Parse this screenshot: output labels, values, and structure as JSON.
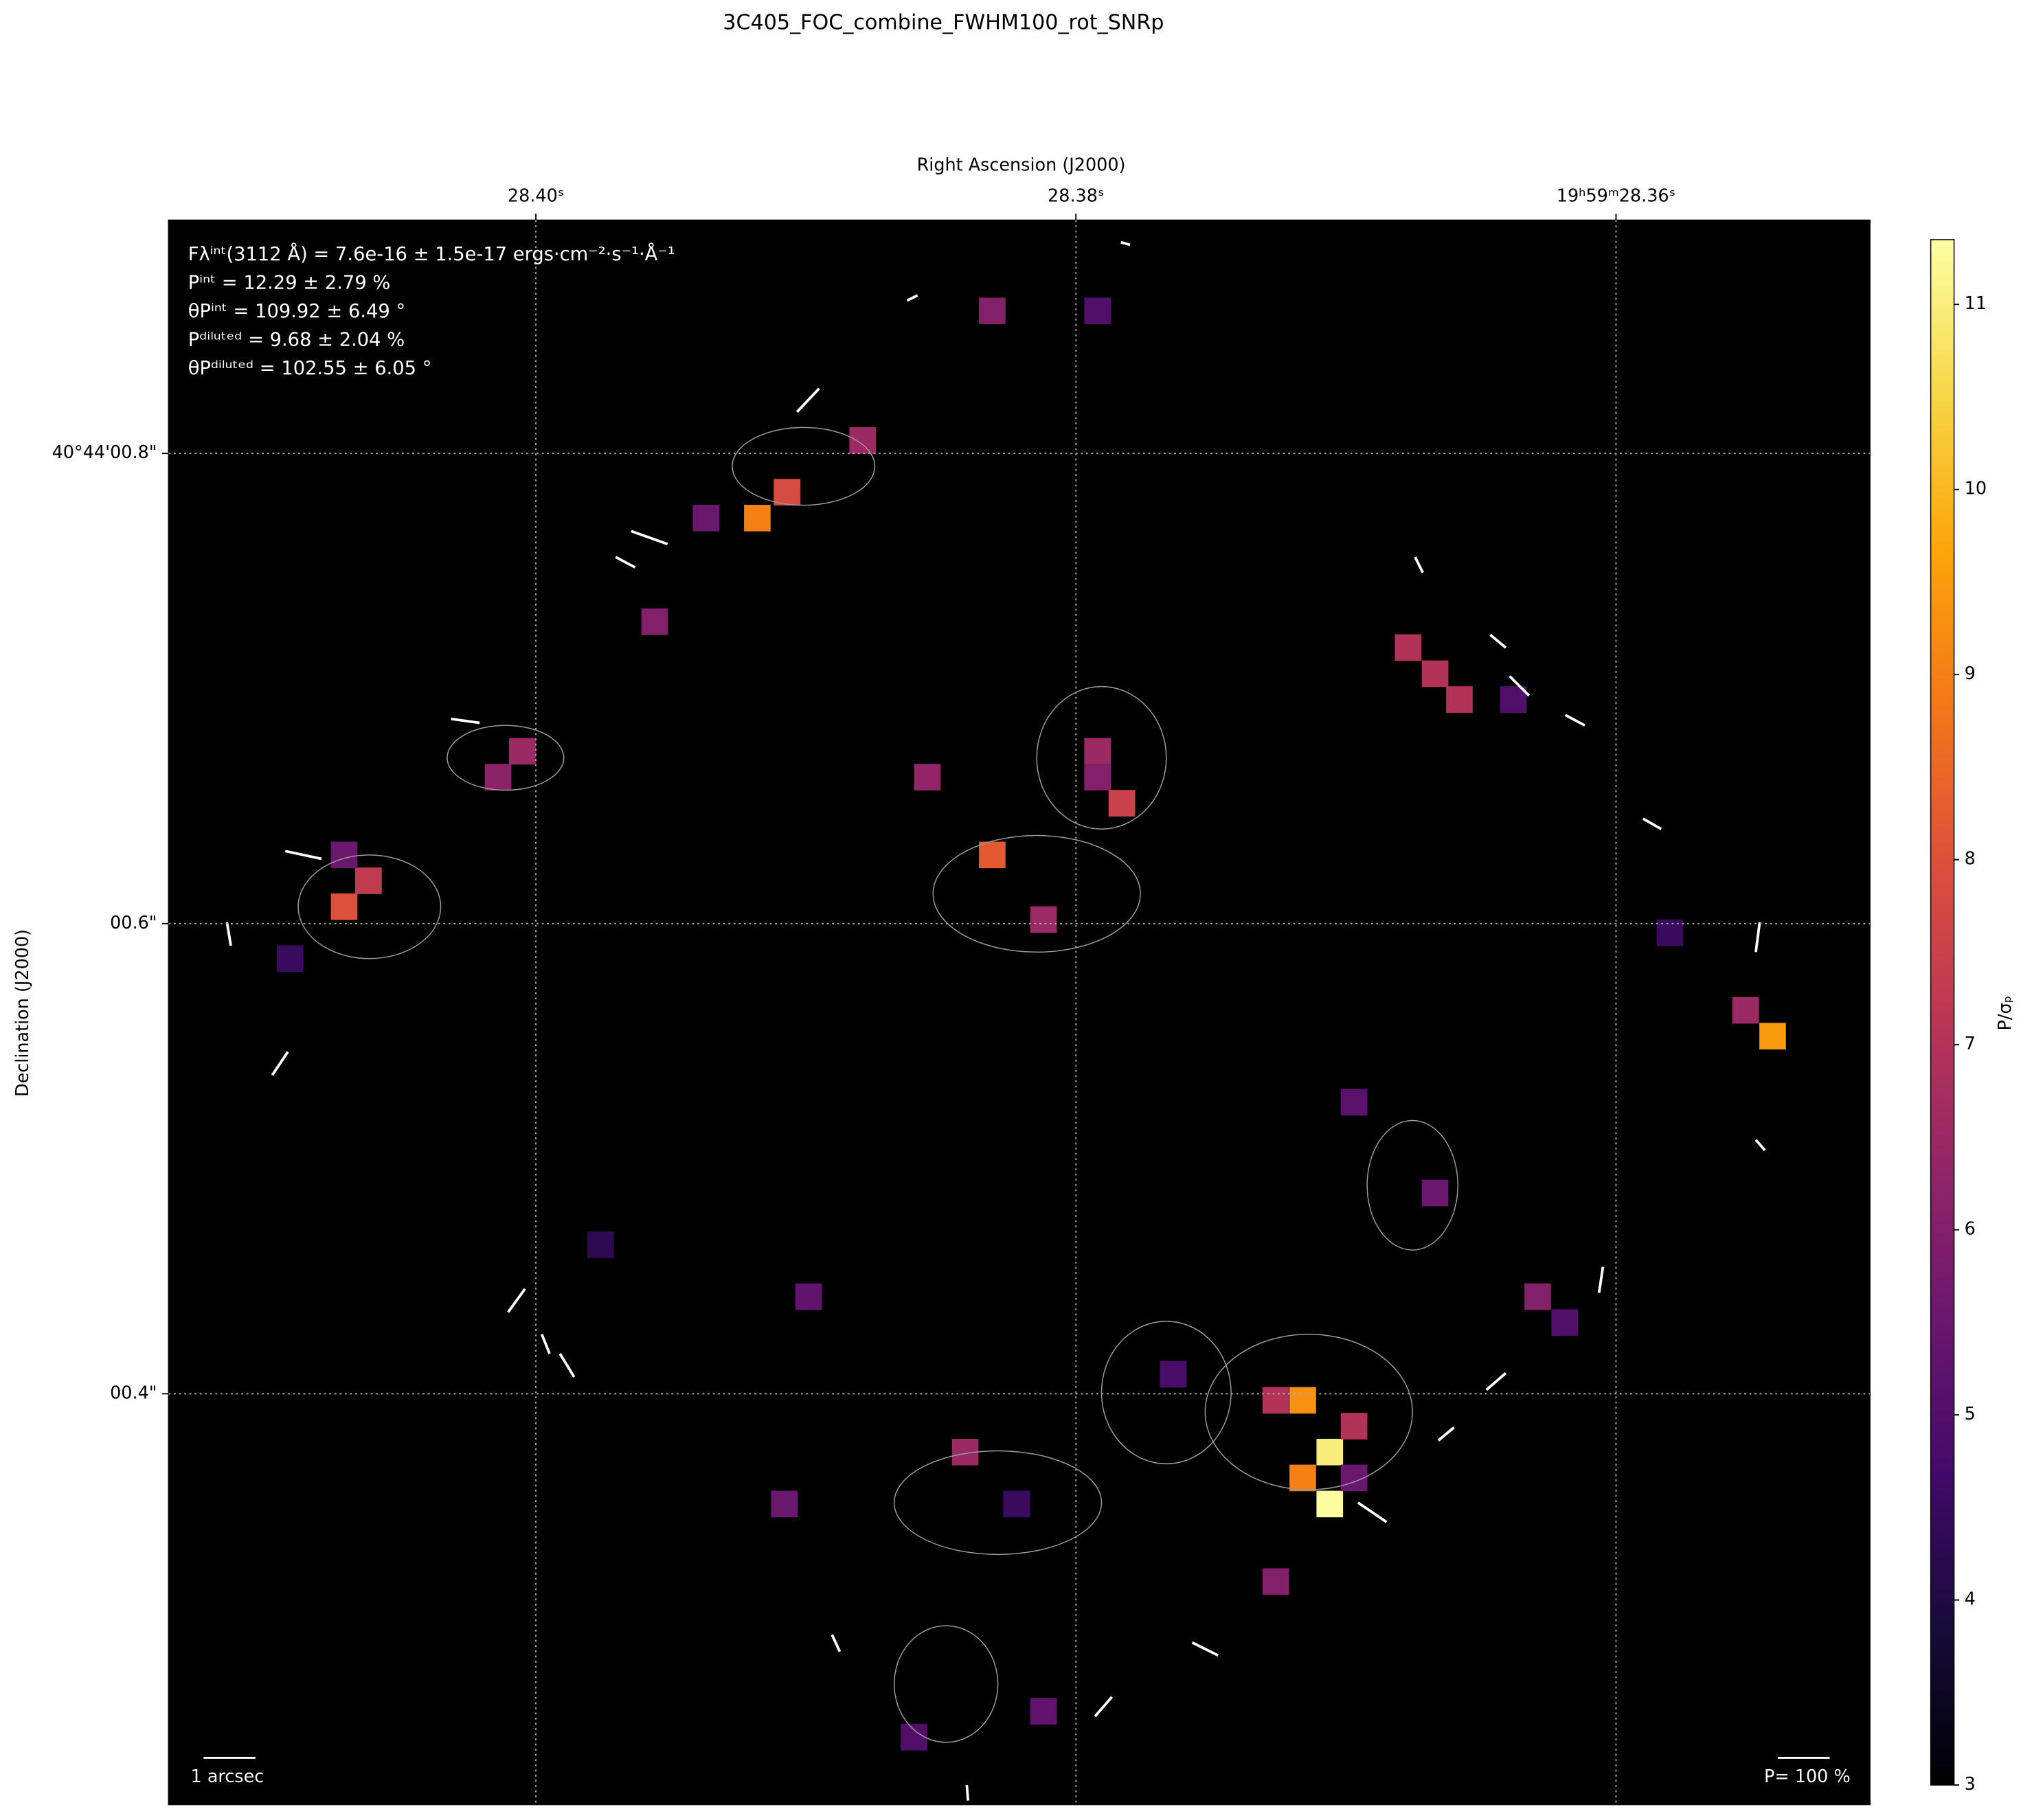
{
  "chart_data": {
    "type": "heatmap",
    "title": "3C405_FOC_combine_FWHM100_rot_SNRp",
    "xlabel": "Right Ascension (J2000)",
    "ylabel": "Declination (J2000)",
    "colorbar_label": "P/σₚ",
    "colormap": "inferno",
    "xlim": [
      28.4136,
      28.3506
    ],
    "ylim": [
      0.2253,
      0.8992
    ],
    "xticks": [
      {
        "value": 28.4,
        "label": "28.40ˢ"
      },
      {
        "value": 28.38,
        "label": "28.38ˢ"
      },
      {
        "value": 28.36,
        "label": "19ʰ59ᵐ28.36ˢ"
      }
    ],
    "yticks": [
      {
        "value": 0.8,
        "label": "40°44'00.8\""
      },
      {
        "value": 0.6,
        "label": "00.6\""
      },
      {
        "value": 0.4,
        "label": "00.4\""
      }
    ],
    "clim": [
      3,
      11.35
    ],
    "cticks": [
      3,
      4,
      5,
      6,
      7,
      8,
      9,
      10,
      11
    ],
    "grid": true,
    "annotations": [
      "Fλⁱⁿᵗ(3112 Å) = 7.6e-16 ± 1.5e-17 ergs·cm⁻²·s⁻¹·Å⁻¹",
      "Pⁱⁿᵗ = 12.29 ± 2.79 %",
      "θPⁱⁿᵗ = 109.92 ± 6.49 °",
      "Pᵈⁱˡᵘᵗᵉᵈ = 9.68 ± 2.04 %",
      "θPᵈⁱˡᵘᵗᵉᵈ = 102.55 ± 6.05 °"
    ],
    "scale_label": "1 arcsec",
    "vector_scale_label": "P= 100 %",
    "cells": [
      [
        28.3831,
        0.8606,
        6
      ],
      [
        28.3792,
        0.8606,
        5
      ],
      [
        28.3907,
        0.7835,
        7.8
      ],
      [
        28.3918,
        0.7725,
        9
      ],
      [
        28.3937,
        0.7725,
        5.5
      ],
      [
        28.3956,
        0.7284,
        6
      ],
      [
        28.3879,
        0.8055,
        6.5
      ],
      [
        28.4005,
        0.6733,
        6.5
      ],
      [
        28.4014,
        0.6623,
        6.2
      ],
      [
        28.4071,
        0.6072,
        8
      ],
      [
        28.4062,
        0.6182,
        7.3
      ],
      [
        28.4071,
        0.6292,
        5.5
      ],
      [
        28.3831,
        0.6292,
        8.2
      ],
      [
        28.3812,
        0.6017,
        6.5
      ],
      [
        28.3855,
        0.6623,
        6.3
      ],
      [
        28.3792,
        0.6733,
        6.5
      ],
      [
        28.3783,
        0.6512,
        7.5
      ],
      [
        28.3677,
        0.7174,
        7
      ],
      [
        28.3667,
        0.7063,
        7
      ],
      [
        28.3658,
        0.6953,
        7
      ],
      [
        28.3638,
        0.6953,
        5
      ],
      [
        28.3542,
        0.5521,
        9.5
      ],
      [
        28.3552,
        0.5631,
        6.5
      ],
      [
        28.3706,
        0.3752,
        11
      ],
      [
        28.3706,
        0.3531,
        11.3
      ],
      [
        28.3716,
        0.3642,
        9
      ],
      [
        28.3716,
        0.3972,
        9.3
      ],
      [
        28.3697,
        0.3862,
        7
      ],
      [
        28.3726,
        0.3972,
        7
      ],
      [
        28.3697,
        0.3642,
        5.5
      ],
      [
        28.3726,
        0.3201,
        6
      ],
      [
        28.3629,
        0.4413,
        6
      ],
      [
        28.3667,
        0.4854,
        5.5
      ],
      [
        28.3697,
        0.524,
        5.2
      ],
      [
        28.3841,
        0.3752,
        6.5
      ],
      [
        28.386,
        0.2539,
        5
      ],
      [
        28.3812,
        0.2649,
        5.3
      ],
      [
        28.3899,
        0.4413,
        5.3
      ],
      [
        28.3908,
        0.3531,
        5.5
      ],
      [
        28.3976,
        0.4634,
        4.3
      ],
      [
        28.4091,
        0.5851,
        4.5
      ],
      [
        28.3822,
        0.3531,
        4.5
      ],
      [
        28.3764,
        0.4083,
        4.8
      ],
      [
        28.3619,
        0.4303,
        5
      ],
      [
        28.358,
        0.5961,
        4.5
      ],
      [
        28.3792,
        0.6623,
        6
      ]
    ]
  }
}
